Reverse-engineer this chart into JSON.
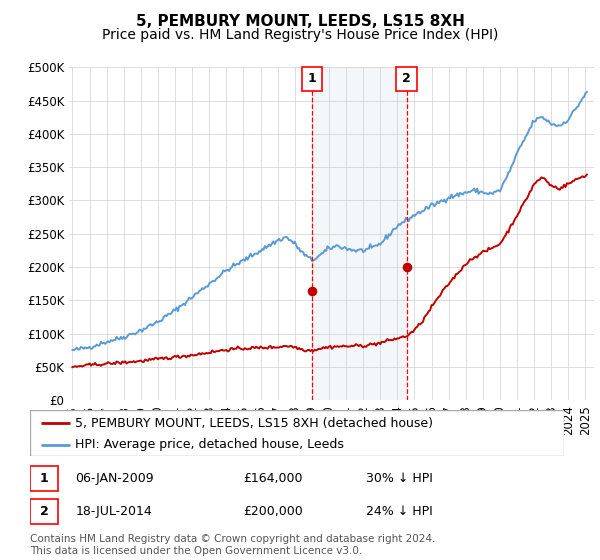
{
  "title": "5, PEMBURY MOUNT, LEEDS, LS15 8XH",
  "subtitle": "Price paid vs. HM Land Registry's House Price Index (HPI)",
  "ylim": [
    0,
    500000
  ],
  "yticks": [
    0,
    50000,
    100000,
    150000,
    200000,
    250000,
    300000,
    350000,
    400000,
    450000,
    500000
  ],
  "ytick_labels": [
    "£0",
    "£50K",
    "£100K",
    "£150K",
    "£200K",
    "£250K",
    "£300K",
    "£350K",
    "£400K",
    "£450K",
    "£500K"
  ],
  "xlim_start": 1994.8,
  "xlim_end": 2025.5,
  "sale1_x": 2009.02,
  "sale1_y": 164000,
  "sale1_label": "06-JAN-2009",
  "sale1_price": "£164,000",
  "sale1_hpi": "30% ↓ HPI",
  "sale2_x": 2014.54,
  "sale2_y": 200000,
  "sale2_label": "18-JUL-2014",
  "sale2_price": "£200,000",
  "sale2_hpi": "24% ↓ HPI",
  "hpi_color": "#5b9bd5",
  "price_color": "#c00000",
  "sale_line_color": "#ff0000",
  "background_color": "#ffffff",
  "legend_red_label": "5, PEMBURY MOUNT, LEEDS, LS15 8XH (detached house)",
  "legend_blue_label": "HPI: Average price, detached house, Leeds",
  "footnote": "Contains HM Land Registry data © Crown copyright and database right 2024.\nThis data is licensed under the Open Government Licence v3.0.",
  "title_fontsize": 11,
  "subtitle_fontsize": 10,
  "tick_fontsize": 8.5,
  "legend_fontsize": 9,
  "footnote_fontsize": 7.5,
  "highlight_color": "#dce6f1",
  "hpi_anchors_x": [
    1995,
    1996,
    1997,
    1998,
    1999,
    2000,
    2001,
    2002,
    2003,
    2004,
    2005,
    2006,
    2007,
    2007.5,
    2008,
    2008.5,
    2009,
    2009.5,
    2010,
    2010.5,
    2011,
    2011.5,
    2012,
    2012.5,
    2013,
    2013.5,
    2014,
    2014.5,
    2015,
    2015.5,
    2016,
    2016.5,
    2017,
    2017.5,
    2018,
    2018.5,
    2019,
    2019.5,
    2020,
    2020.5,
    2021,
    2021.5,
    2022,
    2022.5,
    2023,
    2023.5,
    2024,
    2024.5,
    2025
  ],
  "hpi_anchors_y": [
    75000,
    80000,
    88000,
    95000,
    105000,
    118000,
    135000,
    155000,
    175000,
    195000,
    210000,
    225000,
    240000,
    245000,
    235000,
    220000,
    210000,
    218000,
    228000,
    232000,
    228000,
    225000,
    225000,
    228000,
    235000,
    248000,
    262000,
    270000,
    278000,
    285000,
    292000,
    298000,
    305000,
    308000,
    312000,
    315000,
    312000,
    310000,
    315000,
    340000,
    370000,
    395000,
    420000,
    425000,
    415000,
    412000,
    422000,
    440000,
    460000
  ],
  "price_anchors_x": [
    1995,
    1996,
    1997,
    1998,
    1999,
    2000,
    2001,
    2002,
    2003,
    2004,
    2005,
    2006,
    2007,
    2007.5,
    2008,
    2008.5,
    2009,
    2009.5,
    2010,
    2010.5,
    2011,
    2011.5,
    2012,
    2012.5,
    2013,
    2013.5,
    2014,
    2014.5,
    2015,
    2015.5,
    2016,
    2016.5,
    2017,
    2017.5,
    2018,
    2018.5,
    2019,
    2019.5,
    2020,
    2020.5,
    2021,
    2021.5,
    2022,
    2022.5,
    2023,
    2023.5,
    2024,
    2024.5,
    2025
  ],
  "price_anchors_y": [
    50000,
    53000,
    55000,
    57000,
    59000,
    62000,
    65000,
    68000,
    72000,
    76000,
    78000,
    79000,
    80000,
    82000,
    80000,
    76000,
    75000,
    78000,
    80000,
    81000,
    81000,
    82000,
    82000,
    84000,
    86000,
    90000,
    93000,
    96000,
    105000,
    120000,
    140000,
    158000,
    175000,
    190000,
    205000,
    215000,
    222000,
    228000,
    235000,
    255000,
    278000,
    300000,
    325000,
    335000,
    322000,
    318000,
    325000,
    332000,
    338000
  ]
}
